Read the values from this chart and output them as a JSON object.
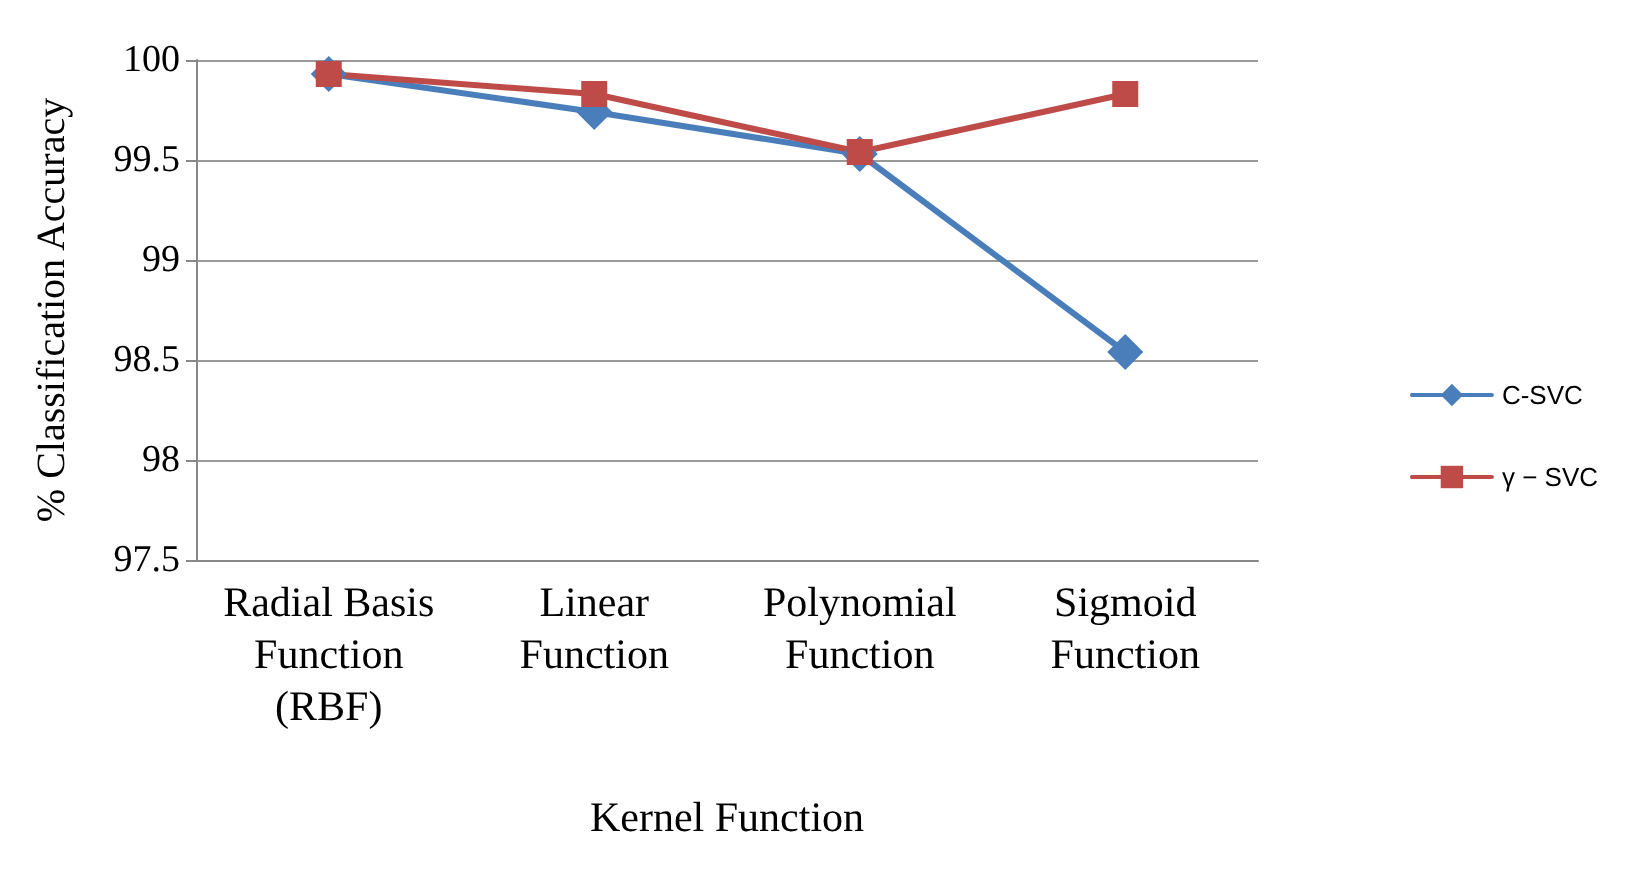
{
  "chart_data": {
    "type": "line",
    "xlabel": "Kernel Function",
    "ylabel": "% Classification Accuracy",
    "categories": [
      "Radial Basis\nFunction\n(RBF)",
      "Linear\nFunction",
      "Polynomial\nFunction",
      "Sigmoid\nFunction"
    ],
    "series": [
      {
        "name": "C-SVC",
        "color": "#4a7ebb",
        "marker": "diamond",
        "values": [
          99.93,
          99.74,
          99.53,
          98.54
        ]
      },
      {
        "name": "γ − SVC",
        "color": "#be4b48",
        "marker": "square",
        "values": [
          99.93,
          99.83,
          99.54,
          99.83
        ]
      }
    ],
    "ylim": [
      97.5,
      100
    ],
    "yticks": [
      97.5,
      98,
      98.5,
      99,
      99.5,
      100
    ],
    "grid": "y",
    "legend": "right",
    "line_style": "solid"
  }
}
